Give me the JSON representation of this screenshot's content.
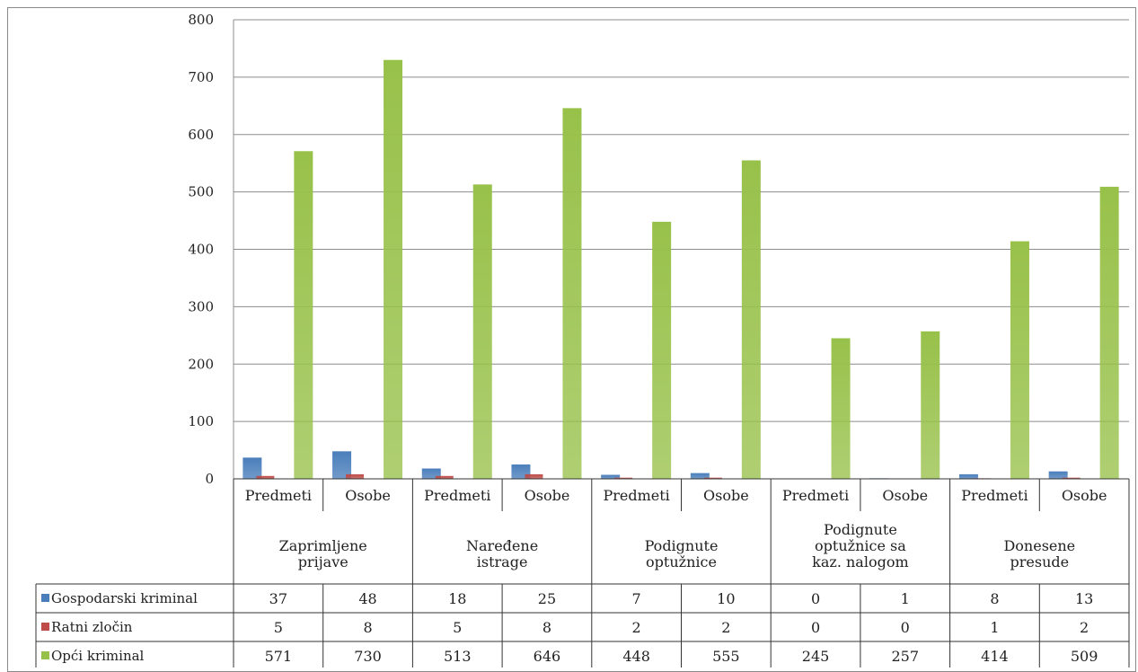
{
  "chart_data": {
    "type": "bar",
    "title": "",
    "ylim": [
      0,
      800
    ],
    "yticks": [
      "0",
      "100",
      "200",
      "300",
      "400",
      "500",
      "600",
      "700",
      "800"
    ],
    "grid": true,
    "legend_placement": "data-table",
    "groups": [
      {
        "label_lines": [
          "Zaprimljene",
          "prijave"
        ]
      },
      {
        "label_lines": [
          "Naređene",
          "istrage"
        ]
      },
      {
        "label_lines": [
          "Podignute",
          "optužnice"
        ]
      },
      {
        "label_lines": [
          "Podignute",
          "optužnice sa",
          "kaz. nalogom"
        ]
      },
      {
        "label_lines": [
          "Donesene",
          "presude"
        ]
      }
    ],
    "subcategories": [
      "Predmeti",
      "Osobe",
      "Predmeti",
      "Osobe",
      "Predmeti",
      "Osobe",
      "Predmeti",
      "Osobe",
      "Predmeti",
      "Osobe"
    ],
    "series": [
      {
        "name": "Gospodarski kriminal",
        "color": "#4a7ebb",
        "values": [
          37,
          48,
          18,
          25,
          7,
          10,
          0,
          1,
          8,
          13
        ],
        "labels": [
          "37",
          "48",
          "18",
          "25",
          "7",
          "10",
          "0",
          "1",
          "8",
          "13"
        ]
      },
      {
        "name": "Ratni zločin",
        "color": "#be4b48",
        "values": [
          5,
          8,
          5,
          8,
          2,
          2,
          0,
          0,
          1,
          2
        ],
        "labels": [
          "5",
          "8",
          "5",
          "8",
          "2",
          "2",
          "0",
          "0",
          "1",
          "2"
        ]
      },
      {
        "name": "Opći kriminal",
        "color": "#98c14a",
        "values": [
          571,
          730,
          513,
          646,
          448,
          555,
          245,
          257,
          414,
          509
        ],
        "labels": [
          "571",
          "730",
          "513",
          "646",
          "448",
          "555",
          "245",
          "257",
          "414",
          "509"
        ]
      }
    ]
  }
}
